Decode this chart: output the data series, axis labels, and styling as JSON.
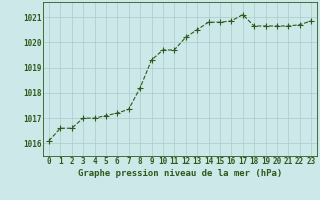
{
  "x": [
    0,
    1,
    2,
    3,
    4,
    5,
    6,
    7,
    8,
    9,
    10,
    11,
    12,
    13,
    14,
    15,
    16,
    17,
    18,
    19,
    20,
    21,
    22,
    23
  ],
  "y": [
    1016.1,
    1016.6,
    1016.6,
    1017.0,
    1017.0,
    1017.1,
    1017.2,
    1017.35,
    1018.2,
    1019.3,
    1019.7,
    1019.7,
    1020.2,
    1020.5,
    1020.8,
    1020.8,
    1020.85,
    1021.1,
    1020.65,
    1020.65,
    1020.65,
    1020.65,
    1020.7,
    1020.85
  ],
  "line_color": "#2d5a1b",
  "marker": "+",
  "marker_size": 4,
  "bg_color": "#cce8e8",
  "grid_color": "#aacccc",
  "title": "Graphe pression niveau de la mer (hPa)",
  "ylim": [
    1015.5,
    1021.6
  ],
  "yticks": [
    1016,
    1017,
    1018,
    1019,
    1020,
    1021
  ],
  "xlim": [
    -0.5,
    23.5
  ],
  "xticks": [
    0,
    1,
    2,
    3,
    4,
    5,
    6,
    7,
    8,
    9,
    10,
    11,
    12,
    13,
    14,
    15,
    16,
    17,
    18,
    19,
    20,
    21,
    22,
    23
  ],
  "xtick_labels": [
    "0",
    "1",
    "2",
    "3",
    "4",
    "5",
    "6",
    "7",
    "8",
    "9",
    "10",
    "11",
    "12",
    "13",
    "14",
    "15",
    "16",
    "17",
    "18",
    "19",
    "20",
    "21",
    "22",
    "23"
  ],
  "title_fontsize": 6.5,
  "tick_fontsize": 5.5
}
